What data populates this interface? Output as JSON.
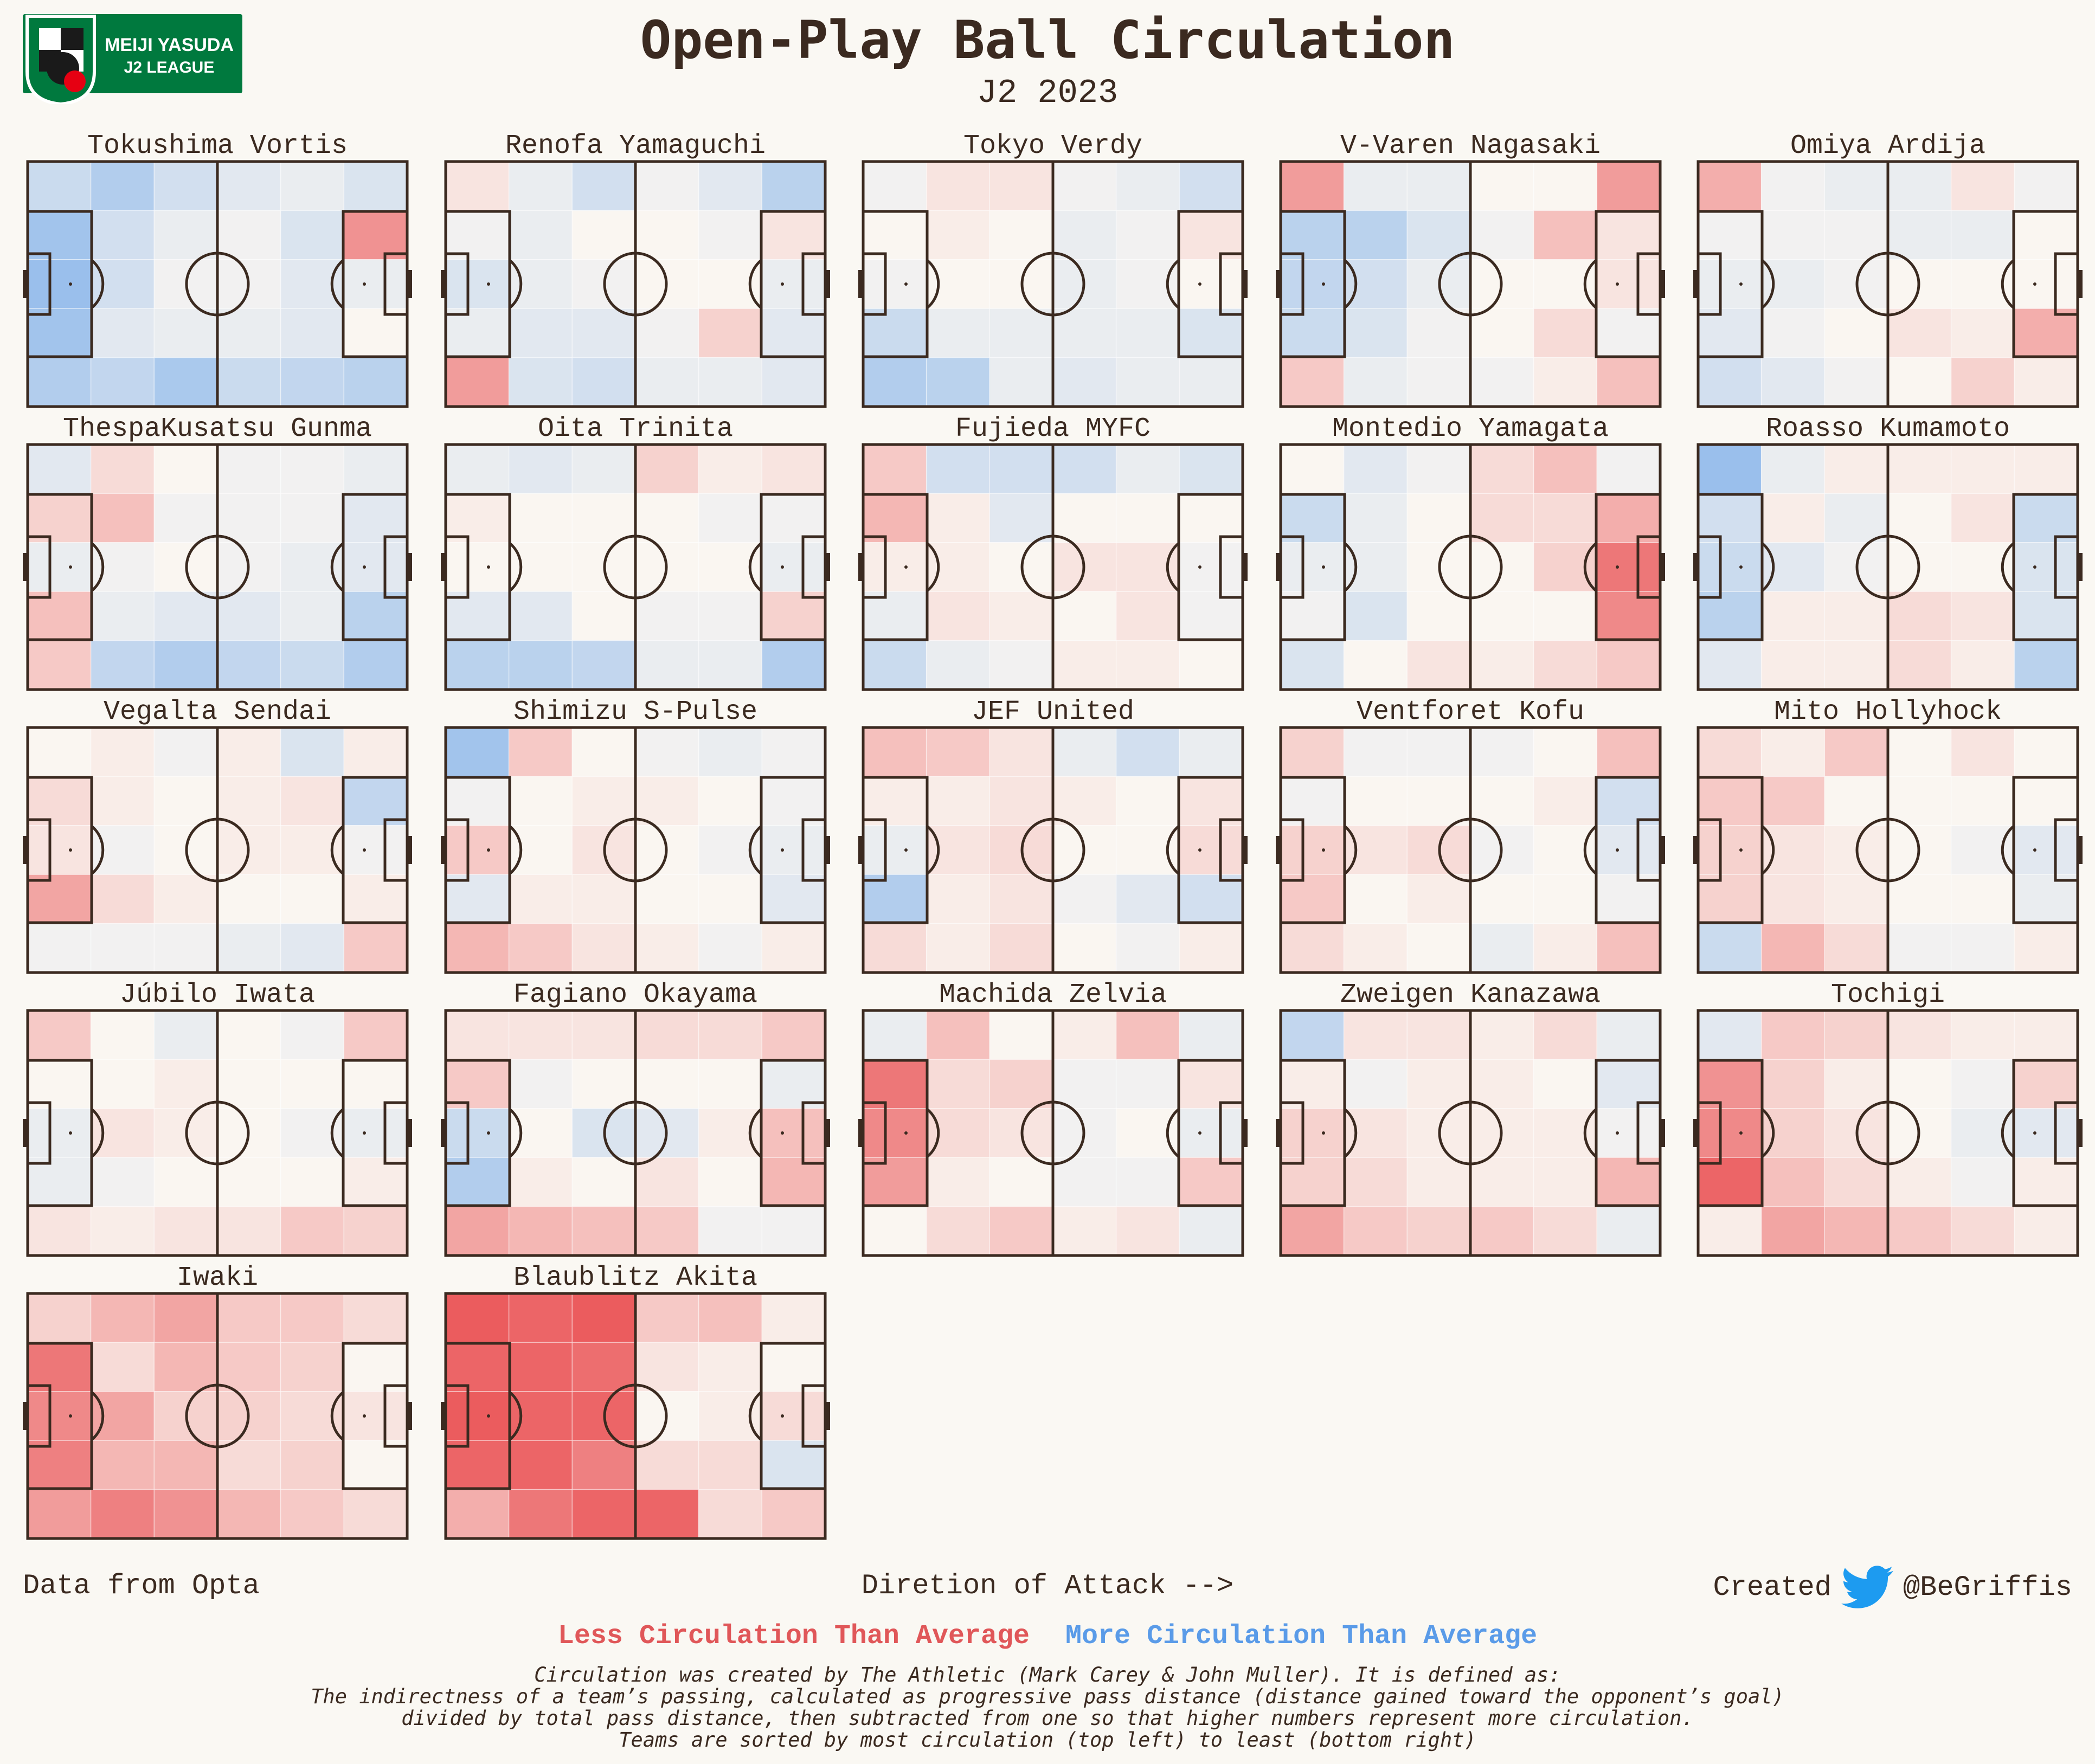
{
  "header": {
    "title": "Open-Play Ball Circulation",
    "subtitle": "J2 2023"
  },
  "logo": {
    "line1": "MEIJI YASUDA",
    "line2": "J2 LEAGUE",
    "color": "#00793e"
  },
  "legend": {
    "less": "Less Circulation Than Average",
    "more": "More Circulation Than Average",
    "less_color": "#e05759",
    "more_color": "#5a9be8"
  },
  "footer": {
    "source": "Data from Opta",
    "direction": "Diretion of Attack -->",
    "created": "Created",
    "handle": "@BeGriffis"
  },
  "notes": [
    "Circulation was created by The Athletic (Mark Carey & John Muller). It is defined as:",
    "The indirectness of a team’s passing, calculated as progressive pass distance (distance gained toward the opponent’s goal)",
    "divided by total pass distance, then subtracted from one so that higher numbers represent more circulation.",
    "Teams are sorted by most circulation (top left) to least (bottom right)"
  ],
  "chart_data": {
    "type": "heatmap",
    "grid": {
      "cols": 6,
      "rows": 5
    },
    "value_scale": "relative circulation vs league average; positive = more (blue), negative = less (red), range -1 to 1",
    "teams": [
      {
        "name": "Tokushima Vortis",
        "zones": [
          [
            0.3,
            0.45,
            0.25,
            0.15,
            0.1,
            0.2
          ],
          [
            0.55,
            0.25,
            0.1,
            0.05,
            0.2,
            -0.55
          ],
          [
            0.6,
            0.25,
            0.05,
            0.05,
            0.15,
            0.1
          ],
          [
            0.55,
            0.15,
            0.1,
            0.1,
            0.15,
            0
          ],
          [
            0.45,
            0.35,
            0.5,
            0.3,
            0.35,
            0.4
          ]
        ]
      },
      {
        "name": "Renofa Yamaguchi",
        "zones": [
          [
            -0.1,
            0.1,
            0.25,
            0.05,
            0.15,
            0.4
          ],
          [
            0.05,
            0.1,
            0,
            0,
            0.05,
            -0.1
          ],
          [
            0.2,
            0.1,
            0.05,
            0,
            0,
            0.1
          ],
          [
            0.1,
            0.15,
            0.15,
            0.05,
            -0.2,
            0.15
          ],
          [
            -0.5,
            0.2,
            0.25,
            0.1,
            0.1,
            0.15
          ]
        ]
      },
      {
        "name": "Tokyo Verdy",
        "zones": [
          [
            0.05,
            -0.1,
            -0.1,
            0.05,
            0.1,
            0.25
          ],
          [
            0,
            -0.05,
            0,
            0.1,
            0.05,
            -0.1
          ],
          [
            0.05,
            0,
            0,
            0.1,
            0.05,
            0
          ],
          [
            0.3,
            0.1,
            0.1,
            0.1,
            0.1,
            0.2
          ],
          [
            0.45,
            0.4,
            0.1,
            0.15,
            0.1,
            0.1
          ]
        ]
      },
      {
        "name": "V-Varen Nagasaki",
        "zones": [
          [
            -0.5,
            0.1,
            0.1,
            0,
            0,
            -0.5
          ],
          [
            0.4,
            0.4,
            0.2,
            0.05,
            -0.3,
            -0.1
          ],
          [
            0.35,
            0.25,
            0.1,
            0,
            0,
            -0.1
          ],
          [
            0.3,
            0.2,
            0.05,
            0,
            -0.15,
            0.05
          ],
          [
            -0.25,
            0.1,
            0.05,
            0.05,
            -0.05,
            -0.3
          ]
        ]
      },
      {
        "name": "Omiya Ardija",
        "zones": [
          [
            -0.4,
            0.05,
            0.1,
            0.1,
            -0.1,
            0.05
          ],
          [
            0.05,
            0.05,
            0.05,
            0.1,
            0.1,
            0
          ],
          [
            0.1,
            0.1,
            0.05,
            0,
            0,
            0
          ],
          [
            0.15,
            0.05,
            0,
            -0.1,
            -0.05,
            -0.4
          ],
          [
            0.25,
            0.15,
            0.05,
            0,
            -0.2,
            -0.05
          ]
        ]
      },
      {
        "name": "ThespaKusatsu Gunma",
        "zones": [
          [
            0.15,
            -0.15,
            0,
            0.05,
            0.05,
            0.1
          ],
          [
            -0.2,
            -0.3,
            0.05,
            0.05,
            0.05,
            0.15
          ],
          [
            0.1,
            0.05,
            0,
            0.05,
            0.1,
            0.15
          ],
          [
            -0.3,
            0.1,
            0.15,
            0.15,
            0.1,
            0.4
          ],
          [
            -0.25,
            0.35,
            0.45,
            0.35,
            0.3,
            0.45
          ]
        ]
      },
      {
        "name": "Oita Trinita",
        "zones": [
          [
            0.1,
            0.15,
            0.1,
            -0.2,
            -0.05,
            -0.1
          ],
          [
            -0.05,
            0,
            0,
            0,
            0.05,
            0.05
          ],
          [
            0,
            0,
            0,
            0,
            0,
            0.1
          ],
          [
            0.15,
            0.15,
            0,
            0.05,
            0.05,
            -0.2
          ],
          [
            0.4,
            0.4,
            0.35,
            0.1,
            0.1,
            0.45
          ]
        ]
      },
      {
        "name": "Fujieda MYFC",
        "zones": [
          [
            -0.25,
            0.25,
            0.25,
            0.25,
            0.1,
            0.2
          ],
          [
            -0.35,
            -0.05,
            0.15,
            0,
            0,
            0
          ],
          [
            -0.05,
            -0.05,
            0,
            -0.1,
            -0.1,
            0.05
          ],
          [
            0.1,
            -0.1,
            -0.05,
            0,
            -0.1,
            0.05
          ],
          [
            0.3,
            0.1,
            0.05,
            -0.05,
            -0.05,
            0
          ]
        ]
      },
      {
        "name": "Montedio Yamagata",
        "zones": [
          [
            0,
            0.15,
            0.05,
            -0.15,
            -0.3,
            0.05
          ],
          [
            0.3,
            0.1,
            0,
            -0.15,
            -0.15,
            -0.4
          ],
          [
            0.1,
            0.1,
            0,
            0,
            -0.2,
            -0.7
          ],
          [
            0.05,
            0.2,
            0,
            0,
            0,
            -0.6
          ],
          [
            0.2,
            0,
            -0.1,
            -0.05,
            -0.15,
            -0.25
          ]
        ]
      },
      {
        "name": "Roasso Kumamoto",
        "zones": [
          [
            0.6,
            0.1,
            -0.05,
            -0.05,
            -0.05,
            -0.05
          ],
          [
            0.25,
            -0.05,
            0.1,
            0,
            -0.1,
            0.3
          ],
          [
            0.3,
            0.15,
            0.05,
            0,
            0,
            0.2
          ],
          [
            0.4,
            -0.05,
            -0.05,
            -0.15,
            -0.1,
            0.2
          ],
          [
            0.15,
            -0.05,
            -0.05,
            -0.15,
            -0.05,
            0.4
          ]
        ]
      },
      {
        "name": "Vegalta Sendai",
        "zones": [
          [
            0,
            -0.05,
            0.05,
            -0.05,
            0.2,
            -0.05
          ],
          [
            -0.15,
            -0.05,
            0,
            -0.05,
            -0.1,
            0.35
          ],
          [
            -0.1,
            0.05,
            0,
            -0.05,
            -0.05,
            0.05
          ],
          [
            -0.45,
            -0.15,
            -0.05,
            0,
            0,
            -0.05
          ],
          [
            0.05,
            0.05,
            0.05,
            0.1,
            0.15,
            -0.25
          ]
        ]
      },
      {
        "name": "Shimizu S-Pulse",
        "zones": [
          [
            0.55,
            -0.25,
            0,
            0.05,
            0.1,
            0.05
          ],
          [
            0.05,
            0,
            -0.05,
            -0.05,
            0,
            0.05
          ],
          [
            -0.25,
            0,
            -0.1,
            0,
            0.05,
            0.1
          ],
          [
            0.15,
            -0.05,
            -0.05,
            0,
            0,
            0.15
          ],
          [
            -0.35,
            -0.25,
            -0.1,
            -0.05,
            0.05,
            -0.05
          ]
        ]
      },
      {
        "name": "JEF United",
        "zones": [
          [
            -0.3,
            -0.25,
            -0.1,
            0.1,
            0.25,
            0.1
          ],
          [
            -0.05,
            -0.05,
            -0.1,
            -0.05,
            0,
            -0.1
          ],
          [
            0.1,
            -0.1,
            -0.15,
            0,
            0,
            -0.15
          ],
          [
            0.45,
            -0.05,
            -0.1,
            0.05,
            0.15,
            0.25
          ],
          [
            -0.15,
            -0.05,
            -0.15,
            0,
            0.05,
            -0.05
          ]
        ]
      },
      {
        "name": "Ventforet Kofu",
        "zones": [
          [
            -0.2,
            0.05,
            0.05,
            0.05,
            0,
            -0.3
          ],
          [
            0.05,
            0,
            0,
            0,
            -0.05,
            0.25
          ],
          [
            -0.2,
            -0.1,
            -0.15,
            0.05,
            0,
            0.15
          ],
          [
            -0.25,
            0,
            -0.05,
            0,
            0,
            0.05
          ],
          [
            -0.15,
            -0.05,
            0,
            0.1,
            -0.05,
            -0.3
          ]
        ]
      },
      {
        "name": "Mito Hollyhock",
        "zones": [
          [
            -0.15,
            -0.05,
            -0.25,
            0,
            -0.1,
            0
          ],
          [
            -0.25,
            -0.25,
            0,
            0,
            0,
            0
          ],
          [
            -0.2,
            -0.1,
            -0.05,
            0,
            0.05,
            0.15
          ],
          [
            -0.2,
            -0.1,
            -0.05,
            0,
            0,
            0.1
          ],
          [
            0.3,
            -0.35,
            -0.15,
            0.05,
            0.05,
            -0.05
          ]
        ]
      },
      {
        "name": "Júbilo Iwata",
        "zones": [
          [
            -0.25,
            0,
            0.1,
            0,
            0.05,
            -0.25
          ],
          [
            0,
            0,
            -0.05,
            0,
            0,
            0
          ],
          [
            0.1,
            -0.1,
            -0.05,
            0,
            0.05,
            0.1
          ],
          [
            0.1,
            0.05,
            0,
            0,
            0,
            -0.05
          ],
          [
            -0.1,
            -0.05,
            -0.1,
            -0.1,
            -0.25,
            -0.2
          ]
        ]
      },
      {
        "name": "Fagiano Okayama",
        "zones": [
          [
            -0.1,
            -0.1,
            -0.1,
            -0.15,
            -0.15,
            -0.25
          ],
          [
            -0.25,
            0.05,
            0,
            0,
            0,
            0.1
          ],
          [
            0.3,
            0,
            0.2,
            0.15,
            -0.05,
            -0.3
          ],
          [
            0.45,
            -0.05,
            0,
            -0.1,
            0,
            -0.35
          ],
          [
            -0.45,
            -0.35,
            -0.3,
            -0.25,
            0.05,
            0.05
          ]
        ]
      },
      {
        "name": "Machida Zelvia",
        "zones": [
          [
            0.1,
            -0.3,
            0,
            -0.05,
            -0.3,
            0.1
          ],
          [
            -0.7,
            -0.15,
            -0.2,
            0.05,
            0.05,
            -0.1
          ],
          [
            -0.6,
            -0.15,
            -0.1,
            0.05,
            0,
            0.1
          ],
          [
            -0.5,
            -0.05,
            0,
            0.05,
            0.05,
            -0.25
          ],
          [
            0,
            -0.15,
            -0.25,
            -0.05,
            -0.1,
            0.1
          ]
        ]
      },
      {
        "name": "Zweigen Kanazawa",
        "zones": [
          [
            0.35,
            -0.1,
            -0.1,
            -0.05,
            -0.15,
            0.1
          ],
          [
            -0.05,
            0.05,
            -0.05,
            -0.05,
            0,
            0.15
          ],
          [
            -0.2,
            -0.1,
            -0.05,
            -0.05,
            -0.05,
            0.05
          ],
          [
            -0.2,
            -0.15,
            -0.05,
            -0.05,
            -0.05,
            -0.35
          ],
          [
            -0.45,
            -0.25,
            -0.2,
            -0.25,
            -0.15,
            0.1
          ]
        ]
      },
      {
        "name": "Tochigi",
        "zones": [
          [
            0.15,
            -0.25,
            -0.2,
            -0.1,
            -0.05,
            -0.05
          ],
          [
            -0.55,
            -0.2,
            -0.05,
            0,
            0.05,
            -0.2
          ],
          [
            -0.6,
            -0.2,
            -0.1,
            0,
            0.1,
            0.15
          ],
          [
            -0.8,
            -0.3,
            -0.15,
            -0.05,
            0.05,
            -0.05
          ],
          [
            -0.05,
            -0.45,
            -0.35,
            -0.25,
            -0.15,
            -0.05
          ]
        ]
      },
      {
        "name": "Iwaki",
        "zones": [
          [
            -0.2,
            -0.35,
            -0.45,
            -0.25,
            -0.25,
            -0.15
          ],
          [
            -0.7,
            -0.15,
            -0.35,
            -0.25,
            -0.2,
            0
          ],
          [
            -0.6,
            -0.45,
            -0.2,
            -0.2,
            -0.15,
            -0.1
          ],
          [
            -0.65,
            -0.35,
            -0.35,
            -0.15,
            -0.2,
            0
          ],
          [
            -0.5,
            -0.65,
            -0.55,
            -0.35,
            -0.25,
            -0.15
          ]
        ]
      },
      {
        "name": "Blaublitz Akita",
        "zones": [
          [
            -0.85,
            -0.8,
            -0.85,
            -0.25,
            -0.3,
            -0.05
          ],
          [
            -0.8,
            -0.8,
            -0.75,
            -0.1,
            -0.05,
            0
          ],
          [
            -0.85,
            -0.8,
            -0.8,
            0,
            -0.05,
            -0.15
          ],
          [
            -0.8,
            -0.8,
            -0.65,
            -0.15,
            -0.15,
            0.2
          ],
          [
            -0.4,
            -0.7,
            -0.8,
            -0.8,
            -0.15,
            -0.25
          ]
        ]
      }
    ]
  }
}
